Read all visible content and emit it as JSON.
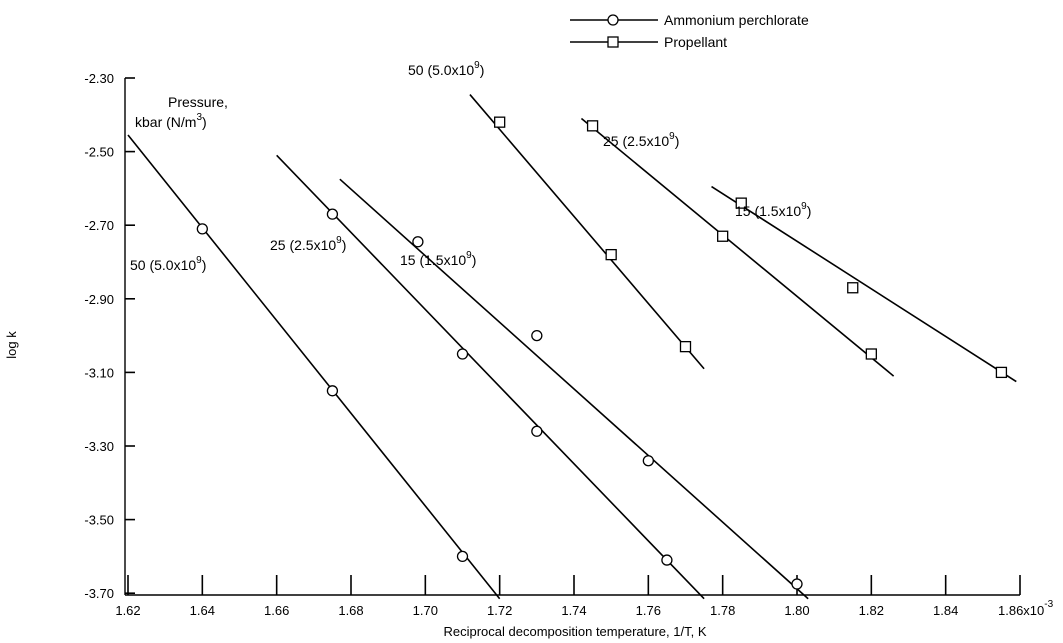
{
  "chart_data": {
    "type": "line",
    "xlabel": "Reciprocal decomposition temperature, 1/T, K",
    "ylabel": "log k",
    "x_ticks": [
      "1.62",
      "1.64",
      "1.66",
      "1.68",
      "1.70",
      "1.72",
      "1.74",
      "1.76",
      "1.78",
      "1.80",
      "1.82",
      "1.84",
      "1.86x10"
    ],
    "x_tick_exponent": "-3",
    "x_tick_values": [
      1.62,
      1.64,
      1.66,
      1.68,
      1.7,
      1.72,
      1.74,
      1.76,
      1.78,
      1.8,
      1.82,
      1.84,
      1.86
    ],
    "y_ticks": [
      "-2.30",
      "-2.50",
      "-2.70",
      "-2.90",
      "-3.10",
      "-3.30",
      "-3.50",
      "-3.70"
    ],
    "y_tick_values": [
      -2.3,
      -2.5,
      -2.7,
      -2.9,
      -3.1,
      -3.3,
      -3.5,
      -3.7
    ],
    "xlim": [
      1.62,
      1.86
    ],
    "ylim": [
      -3.7,
      -2.3
    ],
    "grid": false,
    "legend_position": "top-right",
    "legend": [
      {
        "label": "Ammonium perchlorate",
        "marker": "circle"
      },
      {
        "label": "Propellant",
        "marker": "square"
      }
    ],
    "pressure_header": [
      "Pressure,",
      "kbar (N/m",
      "3",
      ")"
    ],
    "series": [
      {
        "material": "Ammonium perchlorate",
        "pressure_label": [
          "50 (5.0x10",
          "9",
          ")"
        ],
        "marker": "circle",
        "points": [
          [
            1.64,
            -2.71
          ],
          [
            1.675,
            -3.15
          ],
          [
            1.71,
            -3.6
          ]
        ],
        "fit_line": [
          [
            1.62,
            -2.455
          ],
          [
            1.72,
            -3.715
          ]
        ]
      },
      {
        "material": "Ammonium perchlorate",
        "pressure_label": [
          "25 (2.5x10",
          "9",
          ")"
        ],
        "marker": "circle",
        "points": [
          [
            1.675,
            -2.67
          ],
          [
            1.71,
            -3.05
          ],
          [
            1.73,
            -3.26
          ],
          [
            1.765,
            -3.61
          ]
        ],
        "fit_line": [
          [
            1.66,
            -2.51
          ],
          [
            1.775,
            -3.715
          ]
        ]
      },
      {
        "material": "Ammonium perchlorate",
        "pressure_label": [
          "15 (1.5x10",
          "9",
          ")"
        ],
        "marker": "circle",
        "points": [
          [
            1.698,
            -2.745
          ],
          [
            1.73,
            -3.0
          ],
          [
            1.76,
            -3.34
          ],
          [
            1.8,
            -3.675
          ]
        ],
        "fit_line": [
          [
            1.677,
            -2.575
          ],
          [
            1.803,
            -3.715
          ]
        ]
      },
      {
        "material": "Propellant",
        "pressure_label": [
          "50 (5.0x10",
          "9",
          ")"
        ],
        "marker": "square",
        "points": [
          [
            1.72,
            -2.42
          ],
          [
            1.75,
            -2.78
          ],
          [
            1.77,
            -3.03
          ]
        ],
        "fit_line": [
          [
            1.712,
            -2.345
          ],
          [
            1.775,
            -3.09
          ]
        ]
      },
      {
        "material": "Propellant",
        "pressure_label": [
          "25 (2.5x10",
          "9",
          ")"
        ],
        "marker": "square",
        "points": [
          [
            1.745,
            -2.43
          ],
          [
            1.78,
            -2.73
          ],
          [
            1.82,
            -3.05
          ]
        ],
        "fit_line": [
          [
            1.742,
            -2.41
          ],
          [
            1.826,
            -3.11
          ]
        ]
      },
      {
        "material": "Propellant",
        "pressure_label": [
          "15 (1.5x10",
          "9",
          ")"
        ],
        "marker": "square",
        "points": [
          [
            1.785,
            -2.64
          ],
          [
            1.815,
            -2.87
          ],
          [
            1.855,
            -3.1
          ]
        ],
        "fit_line": [
          [
            1.777,
            -2.595
          ],
          [
            1.859,
            -3.125
          ]
        ]
      }
    ]
  }
}
